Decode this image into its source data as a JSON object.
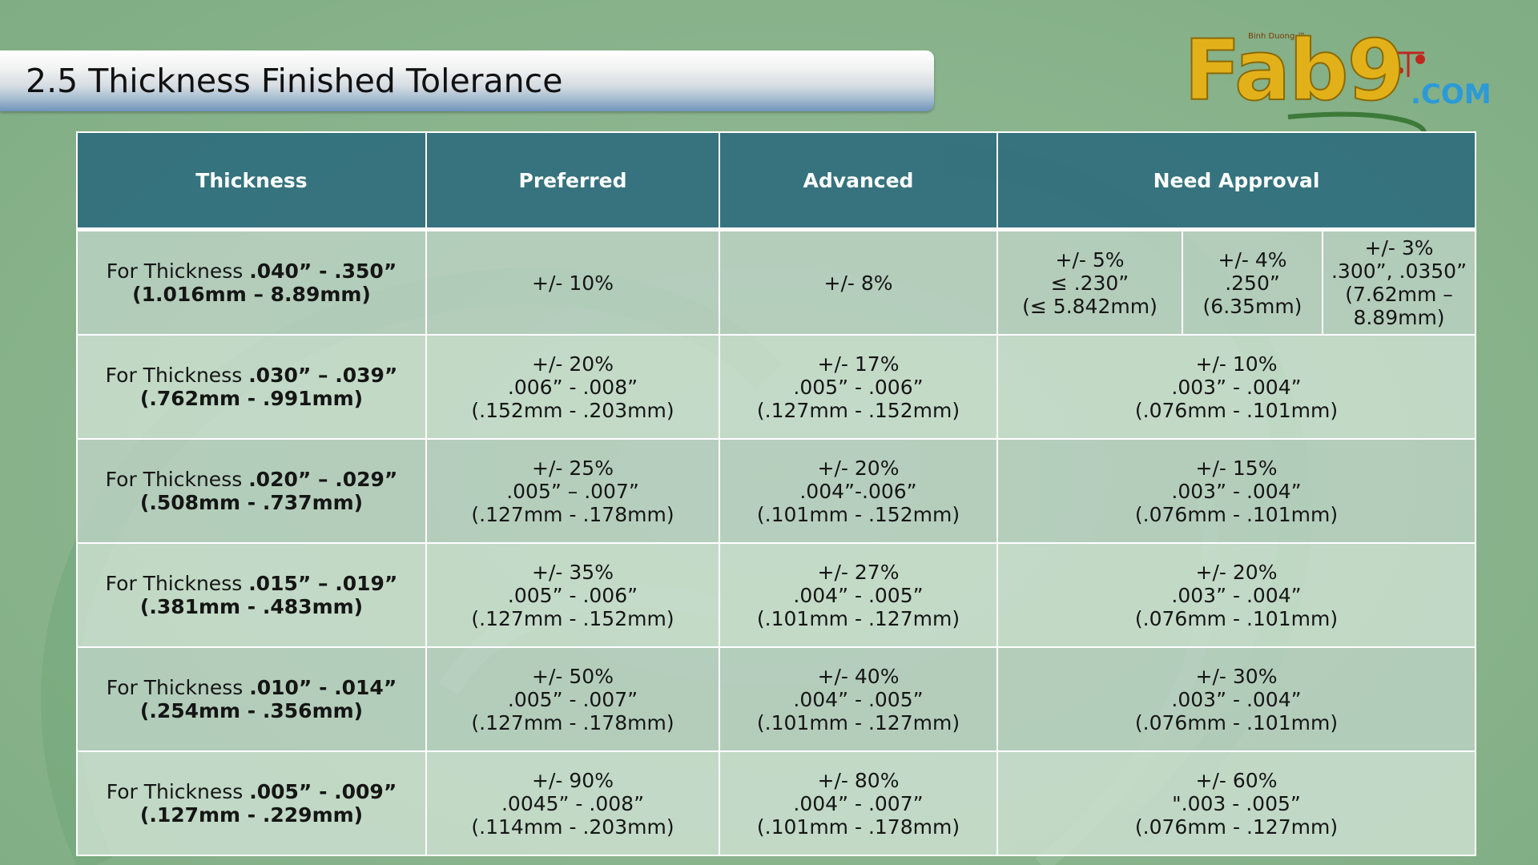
{
  "title": "2.5 Thickness Finished Tolerance",
  "logo": {
    "subtext": "Binh Duong ™",
    "word": "Fab9",
    "domain": ".COM"
  },
  "table": {
    "headers": [
      "Thickness",
      "Preferred",
      "Advanced",
      "Need Approval"
    ],
    "rows": [
      {
        "thickness_prefix": "For Thickness ",
        "thickness_range": ".040” - .350”",
        "thickness_mm": "(1.016mm – 8.89mm)",
        "preferred": [
          "+/- 10%"
        ],
        "advanced": [
          "+/- 8%"
        ],
        "approval_split": [
          [
            "+/- 5%",
            "≤ .230”",
            "(≤ 5.842mm)"
          ],
          [
            "+/- 4%",
            ".250”",
            "(6.35mm)"
          ],
          [
            "+/- 3%",
            ".300”, .0350”",
            "(7.62mm –",
            "8.89mm)"
          ]
        ]
      },
      {
        "thickness_prefix": "For Thickness ",
        "thickness_range": ".030” – .039”",
        "thickness_mm": "(.762mm - .991mm)",
        "preferred": [
          "+/- 20%",
          ".006”  - .008”",
          "(.152mm - .203mm)"
        ],
        "advanced": [
          "+/- 17%",
          ".005” - .006”",
          "(.127mm - .152mm)"
        ],
        "approval": [
          "+/- 10%",
          ".003” - .004”",
          "(.076mm - .101mm)"
        ]
      },
      {
        "thickness_prefix": "For Thickness ",
        "thickness_range": ".020” – .029”",
        "thickness_mm": "(.508mm - .737mm)",
        "preferred": [
          "+/- 25%",
          ".005” – .007”",
          "(.127mm - .178mm)"
        ],
        "advanced": [
          "+/- 20%",
          ".004”-.006”",
          "(.101mm - .152mm)"
        ],
        "approval": [
          "+/- 15%",
          ".003” - .004”",
          "(.076mm - .101mm)"
        ]
      },
      {
        "thickness_prefix": "For Thickness ",
        "thickness_range": ".015” – .019”",
        "thickness_mm": "(.381mm - .483mm)",
        "preferred": [
          "+/- 35%",
          ".005” - .006”",
          "(.127mm - .152mm)"
        ],
        "advanced": [
          "+/- 27%",
          ".004” - .005”",
          "(.101mm - .127mm)"
        ],
        "approval": [
          "+/- 20%",
          ".003” - .004”",
          "(.076mm - .101mm)"
        ]
      },
      {
        "thickness_prefix": "For Thickness ",
        "thickness_range": ".010” - .014”",
        "thickness_mm": "(.254mm - .356mm)",
        "preferred": [
          "+/- 50%",
          ".005” - .007”",
          "(.127mm - .178mm)"
        ],
        "advanced": [
          "+/- 40%",
          ".004” - .005”",
          "(.101mm - .127mm)"
        ],
        "approval": [
          "+/- 30%",
          ".003” - .004”",
          "(.076mm - .101mm)"
        ]
      },
      {
        "thickness_prefix": "For Thickness ",
        "thickness_range": ".005” - .009”",
        "thickness_mm": "(.127mm - .229mm)",
        "preferred": [
          "+/- 90%",
          ".0045” - .008”",
          "(.114mm - .203mm)"
        ],
        "advanced": [
          "+/- 80%",
          ".004” - .007”",
          "(.101mm - .178mm)"
        ],
        "approval": [
          "+/- 60%",
          "\".003 - .005”",
          "(.076mm - .127mm)"
        ]
      }
    ]
  }
}
